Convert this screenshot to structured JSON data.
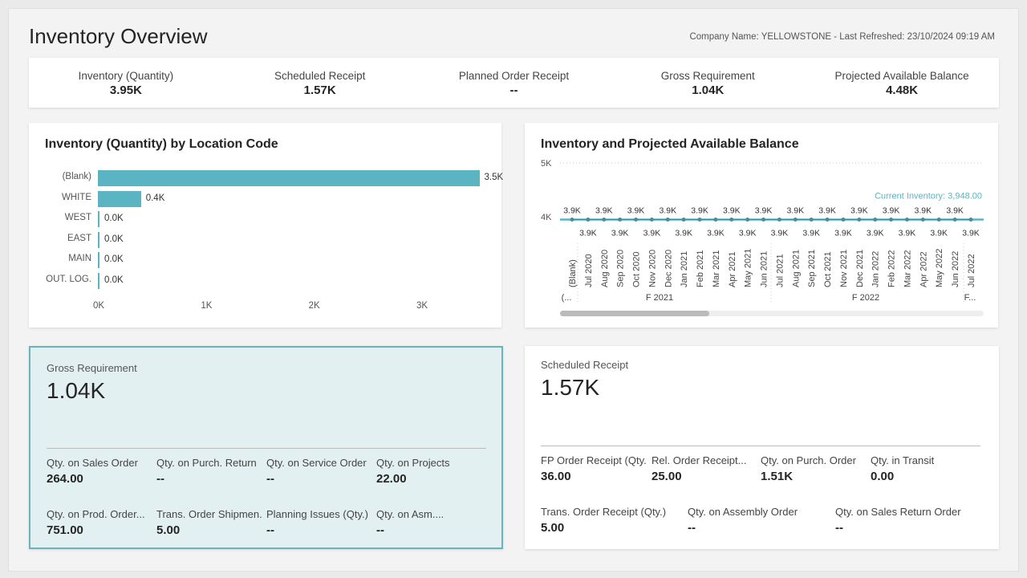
{
  "header": {
    "title": "Inventory Overview",
    "meta": "Company Name: YELLOWSTONE - Last Refreshed: 23/10/2024 09:19 AM"
  },
  "kpis": [
    {
      "label": "Inventory (Quantity)",
      "value": "3.95K"
    },
    {
      "label": "Scheduled Receipt",
      "value": "1.57K"
    },
    {
      "label": "Planned Order Receipt",
      "value": "--"
    },
    {
      "label": "Gross Requirement",
      "value": "1.04K"
    },
    {
      "label": "Projected Available Balance",
      "value": "4.48K"
    }
  ],
  "chart_data": [
    {
      "type": "bar",
      "title": "Inventory (Quantity) by Location Code",
      "orientation": "horizontal",
      "categories": [
        "(Blank)",
        "WHITE",
        "WEST",
        "EAST",
        "MAIN",
        "OUT. LOG."
      ],
      "values": [
        3540,
        400,
        5,
        5,
        5,
        5
      ],
      "data_labels": [
        "3.5K",
        "0.4K",
        "0.0K",
        "0.0K",
        "0.0K",
        "0.0K"
      ],
      "xlim": [
        0,
        3700
      ],
      "x_ticks": [
        "0K",
        "1K",
        "2K",
        "3K"
      ],
      "color": "#5bb4c2"
    },
    {
      "type": "line",
      "title": "Inventory and Projected Available Balance",
      "categories": [
        "(Blank)",
        "Jul 2020",
        "Aug 2020",
        "Sep 2020",
        "Oct 2020",
        "Nov 2020",
        "Dec 2020",
        "Jan 2021",
        "Feb 2021",
        "Mar 2021",
        "Apr 2021",
        "May 2021",
        "Jun 2021",
        "Jul 2021",
        "Aug 2021",
        "Sep 2021",
        "Oct 2021",
        "Nov 2021",
        "Dec 2021",
        "Jan 2022",
        "Feb 2022",
        "Mar 2022",
        "Apr 2022",
        "May 2022",
        "Jun 2022",
        "Jul 2022"
      ],
      "groups": [
        "(...",
        "F 2021",
        "F 2022",
        "F..."
      ],
      "values": [
        3948,
        3948,
        3948,
        3948,
        3948,
        3948,
        3948,
        3948,
        3948,
        3948,
        3948,
        3948,
        3948,
        3948,
        3948,
        3948,
        3948,
        3948,
        3948,
        3948,
        3948,
        3948,
        3948,
        3948,
        3948,
        3948
      ],
      "data_label": "3.9K",
      "y_ticks": [
        "5K",
        "4K"
      ],
      "ylim": [
        3000,
        5000
      ],
      "reference_line": {
        "label": "Current Inventory: 3,948.00",
        "value": 3948,
        "color": "#5bb4c2"
      },
      "grid": true
    }
  ],
  "gross": {
    "label": "Gross Requirement",
    "value": "1.04K",
    "items": [
      {
        "label": "Qty. on Sales Order",
        "value": "264.00"
      },
      {
        "label": "Qty. on Purch. Return",
        "value": "--"
      },
      {
        "label": "Qty. on Service Order",
        "value": "--"
      },
      {
        "label": "Qty. on Projects",
        "value": "22.00"
      },
      {
        "label": "Qty. on Prod. Order...",
        "value": "751.00"
      },
      {
        "label": "Trans. Order Shipmen...",
        "value": "5.00"
      },
      {
        "label": "Planning Issues (Qty.)",
        "value": "--"
      },
      {
        "label": "Qty. on Asm....",
        "value": "--"
      }
    ]
  },
  "scheduled": {
    "label": "Scheduled Receipt",
    "value": "1.57K",
    "items": [
      {
        "label": "FP Order Receipt (Qty.)",
        "value": "36.00"
      },
      {
        "label": "Rel. Order Receipt...",
        "value": "25.00"
      },
      {
        "label": "Qty. on Purch. Order",
        "value": "1.51K"
      },
      {
        "label": "Qty. in Transit",
        "value": "0.00"
      },
      {
        "label": "Trans. Order Receipt (Qty.)",
        "value": "5.00"
      },
      {
        "label": "Qty. on Assembly Order",
        "value": "--"
      },
      {
        "label": "Qty. on Sales Return Order",
        "value": "--"
      }
    ]
  }
}
